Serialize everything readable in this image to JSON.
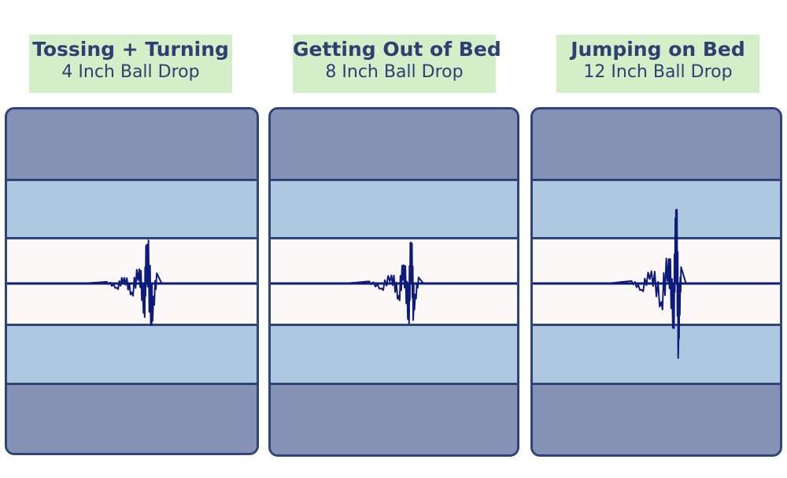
{
  "colors": {
    "label_bg": "#d3efc8",
    "label_text": "#2e3f73",
    "mattress_border": "#2f4578",
    "comfort_layer": "#8592b6",
    "transition_layer": "#aec9df",
    "core_layer": "#fcf8f7",
    "wave": "#0d1b7a"
  },
  "chart_data": [
    {
      "type": "line",
      "title": "Tossing + Turning",
      "subtitle": "4 Inch Ball Drop",
      "x": [
        0,
        0.3,
        0.4,
        0.44,
        0.47,
        0.5,
        0.53,
        0.55,
        0.56,
        0.58,
        0.6,
        0.62,
        1.0
      ],
      "values": [
        0,
        0,
        0.04,
        -0.1,
        0.14,
        -0.22,
        0.35,
        -0.6,
        0.95,
        -0.9,
        0.25,
        0,
        0
      ],
      "ylim": [
        -1,
        1
      ]
    },
    {
      "type": "line",
      "title": "Getting Out of Bed",
      "subtitle": "8 Inch Ball Drop",
      "x": [
        0,
        0.3,
        0.4,
        0.45,
        0.49,
        0.52,
        0.54,
        0.56,
        0.57,
        0.58,
        0.6,
        0.62,
        1.0
      ],
      "values": [
        0,
        0,
        0.05,
        -0.12,
        0.2,
        -0.3,
        0.45,
        -0.7,
        1.0,
        -0.65,
        0.15,
        0,
        0
      ],
      "ylim": [
        -1,
        1
      ]
    },
    {
      "type": "line",
      "title": "Jumping on Bed",
      "subtitle": "12 Inch Ball Drop",
      "x": [
        0,
        0.3,
        0.4,
        0.44,
        0.48,
        0.52,
        0.55,
        0.57,
        0.58,
        0.59,
        0.6,
        0.62,
        1.0
      ],
      "values": [
        0,
        0,
        0.06,
        -0.15,
        0.3,
        -0.45,
        0.6,
        -0.85,
        1.8,
        -1.3,
        0.4,
        0,
        0
      ],
      "ylim": [
        -2,
        2
      ]
    }
  ]
}
